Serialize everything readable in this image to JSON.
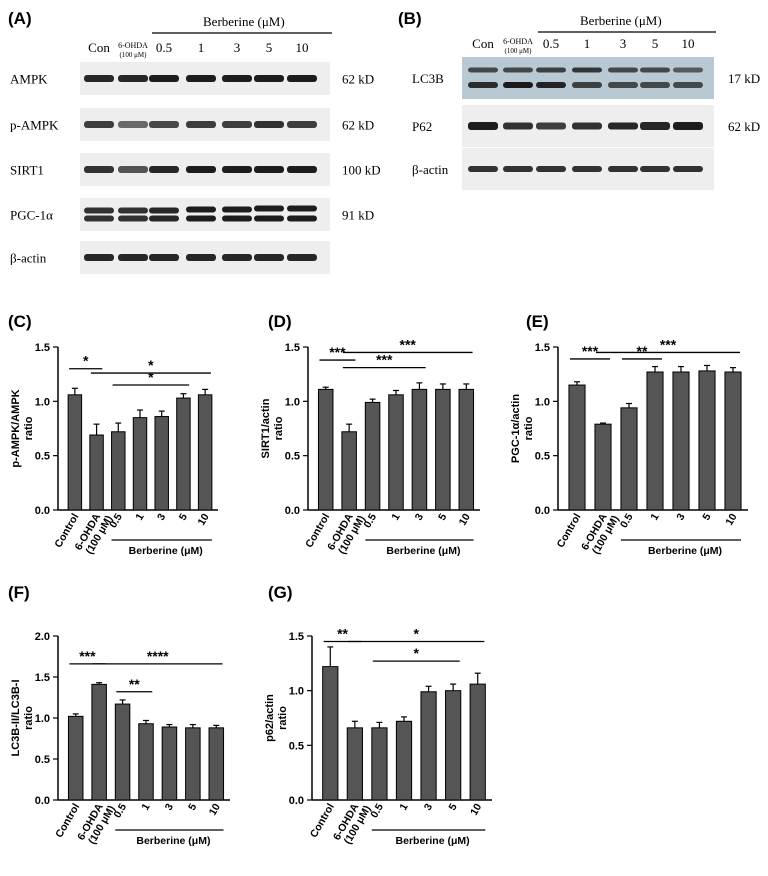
{
  "blots": {
    "A": {
      "label": "(A)",
      "header": "Berberine (μM)",
      "lanes": [
        "Con",
        "6-OHDA",
        "0.5",
        "1",
        "3",
        "5",
        "10"
      ],
      "sublabel": "(100 μM)",
      "rows": [
        {
          "name": "AMPK",
          "kd": "62 kD"
        },
        {
          "name": "p-AMPK",
          "kd": "62 kD"
        },
        {
          "name": "SIRT1",
          "kd": "100 kD"
        },
        {
          "name": "PGC-1α",
          "kd": "91 kD"
        },
        {
          "name": "β-actin",
          "kd": ""
        }
      ]
    },
    "B": {
      "label": "(B)",
      "header": "Berberine (μM)",
      "lanes": [
        "Con",
        "6-OHDA",
        "0.5",
        "1",
        "3",
        "5",
        "10"
      ],
      "sublabel": "(100 μM)",
      "rows": [
        {
          "name": "LC3B",
          "kd": "17 kD"
        },
        {
          "name": "P62",
          "kd": "62 kD"
        },
        {
          "name": "β-actin",
          "kd": ""
        }
      ]
    }
  },
  "chart_data": [
    {
      "panel": "(C)",
      "type": "bar",
      "categories": [
        "Control",
        "6-OHDA",
        "0.5",
        "1",
        "3",
        "5",
        "10"
      ],
      "values": [
        1.06,
        0.69,
        0.72,
        0.85,
        0.86,
        1.03,
        1.06
      ],
      "errors": [
        0.06,
        0.1,
        0.08,
        0.07,
        0.05,
        0.04,
        0.05
      ],
      "ylabel": "p-AMPK/AMPK\nratio",
      "ylim": [
        0,
        1.5
      ],
      "yticks": [
        "0.0",
        "0.5",
        "1.0",
        "1.5"
      ],
      "group_label": "Berberine (μM)",
      "sublabel": "(100 μM)",
      "significance": [
        {
          "from": 0,
          "to": 1,
          "text": "*",
          "y": 1.3
        },
        {
          "from": 1,
          "to": 6,
          "text": "*",
          "y": 1.26
        },
        {
          "from": 2,
          "to": 5,
          "text": "*",
          "y": 1.15
        }
      ]
    },
    {
      "panel": "(D)",
      "type": "bar",
      "categories": [
        "Control",
        "6-OHDA",
        "0.5",
        "1",
        "3",
        "5",
        "10"
      ],
      "values": [
        1.11,
        0.72,
        0.99,
        1.06,
        1.11,
        1.11,
        1.11
      ],
      "errors": [
        0.02,
        0.07,
        0.03,
        0.04,
        0.06,
        0.05,
        0.05
      ],
      "ylabel": "SIRT1/actin\nratio",
      "ylim": [
        0,
        1.5
      ],
      "yticks": [
        "0.0",
        "0.5",
        "1.0",
        "1.5"
      ],
      "group_label": "Berberine (μM)",
      "sublabel": "(100 μM)",
      "significance": [
        {
          "from": 0,
          "to": 1,
          "text": "***",
          "y": 1.38
        },
        {
          "from": 1,
          "to": 6,
          "text": "***",
          "y": 1.45
        },
        {
          "from": 1,
          "to": 4,
          "text": "***",
          "y": 1.31
        }
      ]
    },
    {
      "panel": "(E)",
      "type": "bar",
      "categories": [
        "Control",
        "6-OHDA",
        "0.5",
        "1",
        "3",
        "5",
        "10"
      ],
      "values": [
        1.15,
        0.79,
        0.94,
        1.27,
        1.27,
        1.28,
        1.27
      ],
      "errors": [
        0.03,
        0.01,
        0.04,
        0.05,
        0.05,
        0.05,
        0.04
      ],
      "ylabel": "PGC-1α/actin\nratio",
      "ylim": [
        0,
        1.5
      ],
      "yticks": [
        "0.0",
        "0.5",
        "1.0",
        "1.5"
      ],
      "group_label": "Berberine (μM)",
      "sublabel": "(100 μM)",
      "significance": [
        {
          "from": 0,
          "to": 1,
          "text": "***",
          "y": 1.39
        },
        {
          "from": 1,
          "to": 6,
          "text": "***",
          "y": 1.45
        },
        {
          "from": 2,
          "to": 3,
          "text": "**",
          "y": 1.39
        }
      ]
    },
    {
      "panel": "(F)",
      "type": "bar",
      "categories": [
        "Control",
        "6-OHDA",
        "0.5",
        "1",
        "3",
        "5",
        "10"
      ],
      "values": [
        1.02,
        1.41,
        1.17,
        0.93,
        0.89,
        0.88,
        0.88
      ],
      "errors": [
        0.03,
        0.02,
        0.05,
        0.04,
        0.03,
        0.04,
        0.03
      ],
      "ylabel": "LC3B-II/LC3B-I\nratio",
      "ylim": [
        0,
        2.0
      ],
      "yticks": [
        "0.0",
        "0.5",
        "1.0",
        "1.5",
        "2.0"
      ],
      "group_label": "Berberine (μM)",
      "sublabel": "(100 μM)",
      "significance": [
        {
          "from": 0,
          "to": 1,
          "text": "***",
          "y": 1.66
        },
        {
          "from": 1,
          "to": 6,
          "text": "****",
          "y": 1.66
        },
        {
          "from": 2,
          "to": 3,
          "text": "**",
          "y": 1.32
        }
      ]
    },
    {
      "panel": "(G)",
      "type": "bar",
      "categories": [
        "Control",
        "6-OHDA",
        "0.5",
        "1",
        "3",
        "5",
        "10"
      ],
      "values": [
        1.22,
        0.66,
        0.66,
        0.72,
        0.99,
        1.0,
        1.06
      ],
      "errors": [
        0.18,
        0.06,
        0.05,
        0.04,
        0.05,
        0.06,
        0.1
      ],
      "ylabel": "p62/actin\nratio",
      "ylim": [
        0,
        1.5
      ],
      "yticks": [
        "0.0",
        "0.5",
        "1.0",
        "1.5"
      ],
      "group_label": "Berberine (μM)",
      "sublabel": "(100 μM)",
      "significance": [
        {
          "from": 0,
          "to": 1,
          "text": "**",
          "y": 1.45
        },
        {
          "from": 1,
          "to": 6,
          "text": "*",
          "y": 1.45
        },
        {
          "from": 2,
          "to": 5,
          "text": "*",
          "y": 1.27
        }
      ]
    }
  ],
  "colors": {
    "bar": "#555555",
    "axis": "#000000",
    "blot_bg": "#eeeeee",
    "lc3b_bg": "#b9c9d3"
  }
}
